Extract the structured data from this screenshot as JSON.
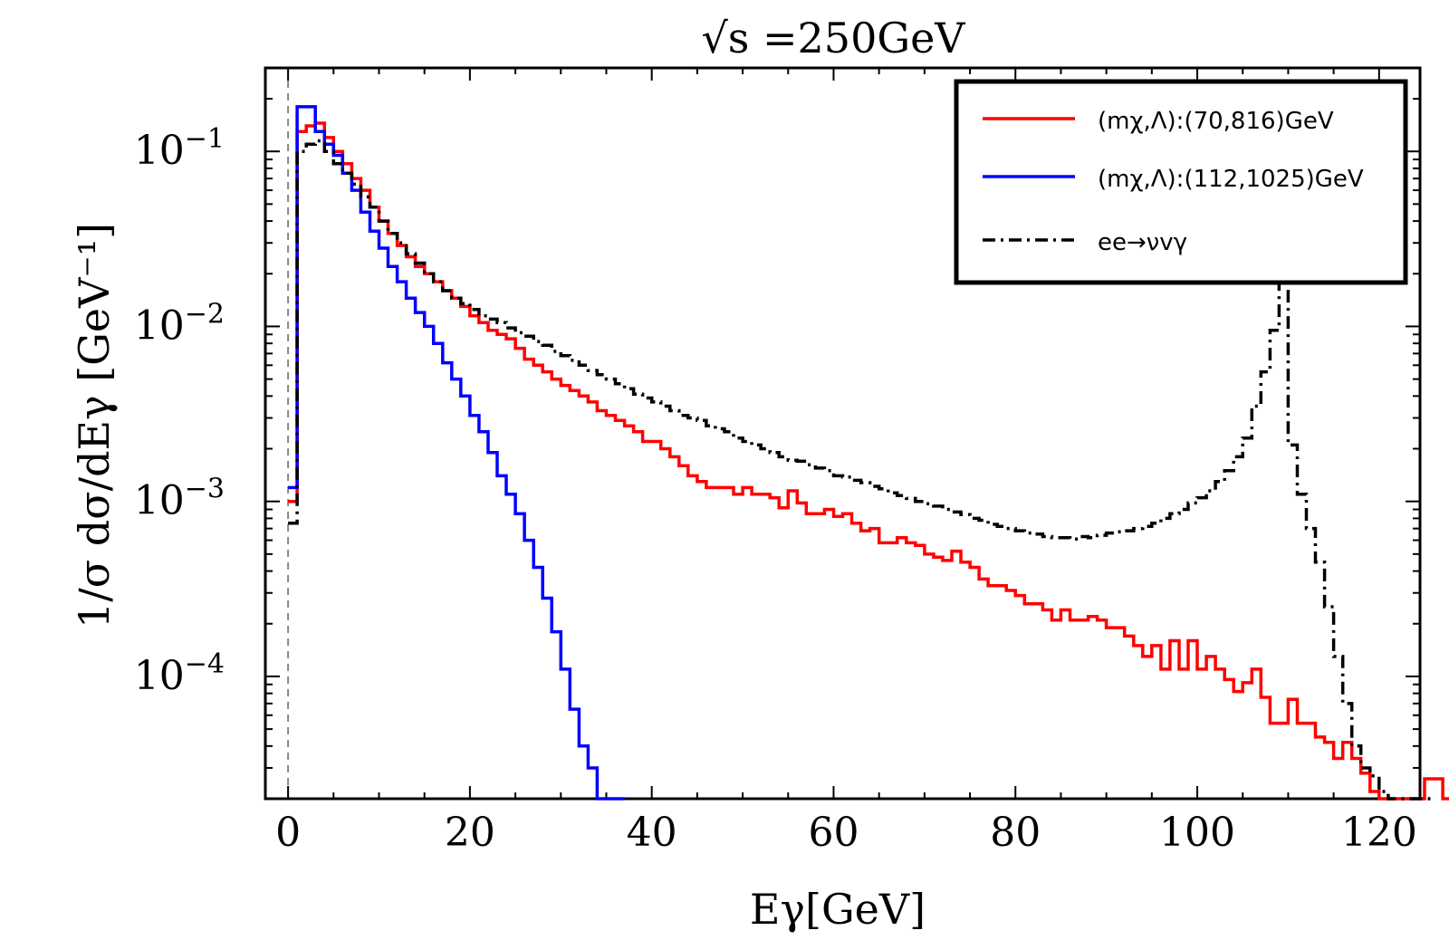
{
  "chart_data": {
    "type": "line",
    "title": "√s =250GeV",
    "xlabel": "Eγ[GeV]",
    "ylabel": "1/σ dσ/dEγ [GeV⁻¹]",
    "xlim": [
      -2.5,
      124.5
    ],
    "ylim": [
      2e-05,
      0.3
    ],
    "yscale": "log",
    "bin_width": 1,
    "grid": false,
    "legend_position": "top-right",
    "x_ticks": [
      0,
      20,
      40,
      60,
      80,
      100,
      120
    ],
    "y_ticks": [
      {
        "value": 0.1,
        "base": "10",
        "exp": "−1"
      },
      {
        "value": 0.01,
        "base": "10",
        "exp": "−2"
      },
      {
        "value": 0.001,
        "base": "10",
        "exp": "−3"
      },
      {
        "value": 0.0001,
        "base": "10",
        "exp": "−4"
      }
    ],
    "series": [
      {
        "name": "(mχ,Λ):(70,816)GeV",
        "color": "#ff0000",
        "style": "solid",
        "x_start": 0,
        "values": [
          0.001,
          0.13,
          0.14,
          0.145,
          0.12,
          0.1,
          0.085,
          0.07,
          0.06,
          0.048,
          0.04,
          0.034,
          0.029,
          0.025,
          0.022,
          0.02,
          0.018,
          0.016,
          0.0145,
          0.013,
          0.0115,
          0.0105,
          0.0095,
          0.009,
          0.0085,
          0.0075,
          0.0065,
          0.006,
          0.0055,
          0.005,
          0.0046,
          0.0043,
          0.004,
          0.0037,
          0.0033,
          0.0031,
          0.0029,
          0.0027,
          0.0025,
          0.0022,
          0.0022,
          0.002,
          0.0018,
          0.0016,
          0.0014,
          0.0013,
          0.0012,
          0.0012,
          0.0012,
          0.0011,
          0.0012,
          0.0011,
          0.0011,
          0.00105,
          0.00092,
          0.00115,
          0.00098,
          0.00085,
          0.00085,
          0.0009,
          0.00082,
          0.00085,
          0.00075,
          0.00068,
          0.0007,
          0.00058,
          0.00058,
          0.00062,
          0.00058,
          0.00056,
          0.0005,
          0.00048,
          0.00046,
          0.00052,
          0.00045,
          0.00042,
          0.00036,
          0.00033,
          0.00033,
          0.00031,
          0.00029,
          0.00026,
          0.00026,
          0.00024,
          0.00021,
          0.00024,
          0.00021,
          0.00021,
          0.00022,
          0.00021,
          0.00019,
          0.00019,
          0.00017,
          0.00015,
          0.00013,
          0.00015,
          0.00011,
          0.00016,
          0.00011,
          0.00016,
          0.00011,
          0.00013,
          0.00011,
          9.6e-05,
          8.2e-05,
          9.2e-05,
          0.00011,
          7.6e-05,
          5.4e-05,
          5.4e-05,
          7.4e-05,
          5.4e-05,
          5.4e-05,
          4.5e-05,
          4.2e-05,
          3.4e-05,
          4.2e-05,
          3.4e-05,
          2.8e-05,
          2.2e-05,
          2e-05,
          2e-05,
          2e-05,
          2e-05,
          2e-05,
          2.6e-05,
          2.6e-05,
          2e-05
        ]
      },
      {
        "name": "(mχ,Λ):(112,1025)GeV",
        "color": "#0000ff",
        "style": "solid",
        "x_start": 0,
        "values": [
          0.0012,
          0.18,
          0.18,
          0.13,
          0.11,
          0.095,
          0.075,
          0.06,
          0.045,
          0.035,
          0.028,
          0.022,
          0.018,
          0.0145,
          0.012,
          0.01,
          0.008,
          0.0062,
          0.005,
          0.004,
          0.0031,
          0.0025,
          0.0019,
          0.0014,
          0.0011,
          0.00085,
          0.0006,
          0.00042,
          0.00028,
          0.00018,
          0.00011,
          6.5e-05,
          4e-05,
          3e-05,
          2e-05,
          2e-05,
          2e-05
        ]
      },
      {
        "name": "ee→νvγ",
        "color": "#000000",
        "style": "dashdot",
        "x_start": 0,
        "values": [
          0.00075,
          0.1,
          0.11,
          0.115,
          0.1,
          0.085,
          0.075,
          0.065,
          0.055,
          0.048,
          0.04,
          0.034,
          0.03,
          0.026,
          0.023,
          0.02,
          0.018,
          0.016,
          0.0145,
          0.0135,
          0.0125,
          0.0115,
          0.011,
          0.0105,
          0.0098,
          0.0092,
          0.0088,
          0.0082,
          0.0078,
          0.0072,
          0.0068,
          0.0064,
          0.006,
          0.0056,
          0.0053,
          0.005,
          0.0047,
          0.0044,
          0.0041,
          0.0039,
          0.0037,
          0.0035,
          0.0033,
          0.0031,
          0.003,
          0.0029,
          0.0027,
          0.0026,
          0.0025,
          0.0023,
          0.0022,
          0.0021,
          0.002,
          0.0019,
          0.0018,
          0.00172,
          0.0017,
          0.00162,
          0.00155,
          0.0015,
          0.0014,
          0.00138,
          0.00132,
          0.00128,
          0.00122,
          0.00118,
          0.00112,
          0.00108,
          0.00104,
          0.001,
          0.00097,
          0.00094,
          0.0009,
          0.00087,
          0.00084,
          0.0008,
          0.00078,
          0.00074,
          0.00072,
          0.0007,
          0.00068,
          0.00066,
          0.00065,
          0.00063,
          0.00062,
          0.00062,
          0.00061,
          0.00063,
          0.00062,
          0.00064,
          0.00066,
          0.00067,
          0.00068,
          0.0007,
          0.00072,
          0.00075,
          0.0008,
          0.00085,
          0.0009,
          0.00098,
          0.00105,
          0.00115,
          0.0013,
          0.0015,
          0.0018,
          0.0023,
          0.0035,
          0.0055,
          0.0095,
          0.018,
          0.0021,
          0.0011,
          0.0007,
          0.00045,
          0.00025,
          0.00013,
          7e-05,
          4e-05,
          3e-05,
          2.7e-05,
          2.2e-05,
          2e-05,
          2e-05,
          2e-05,
          2e-05,
          2e-05
        ]
      }
    ]
  }
}
